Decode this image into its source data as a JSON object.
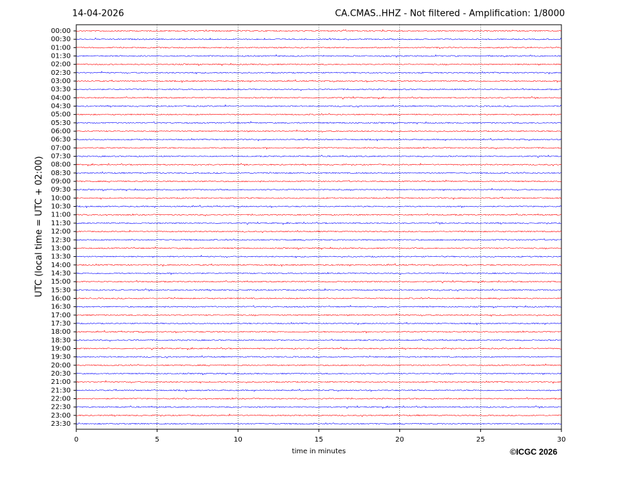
{
  "chart_data": {
    "type": "helicorder",
    "date": "14-04-2026",
    "title": "CA.CMAS..HHZ - Not filtered - Amplification: 1/8000",
    "y_label": "UTC (local time = UTC + 02:00)",
    "x_label": "time in minutes",
    "credit": "©ICGC 2026",
    "categories": [
      "00:00",
      "00:30",
      "01:00",
      "01:30",
      "02:00",
      "02:30",
      "03:00",
      "03:30",
      "04:00",
      "04:30",
      "05:00",
      "05:30",
      "06:00",
      "06:30",
      "07:00",
      "07:30",
      "08:00",
      "08:30",
      "09:00",
      "09:30",
      "10:00",
      "10:30",
      "11:00",
      "11:30",
      "12:00",
      "12:30",
      "13:00",
      "13:30",
      "14:00",
      "14:30",
      "15:00",
      "15:30",
      "16:00",
      "16:30",
      "17:00",
      "17:30",
      "18:00",
      "18:30",
      "19:00",
      "19:30",
      "20:00",
      "20:30",
      "21:00",
      "21:30",
      "22:00",
      "22:30",
      "23:00",
      "23:30"
    ],
    "colors": [
      "#ff0000",
      "#0000ff"
    ],
    "xlim": [
      0,
      30
    ],
    "xticks": [
      0,
      5,
      10,
      15,
      20,
      25,
      30
    ],
    "grid": true
  }
}
